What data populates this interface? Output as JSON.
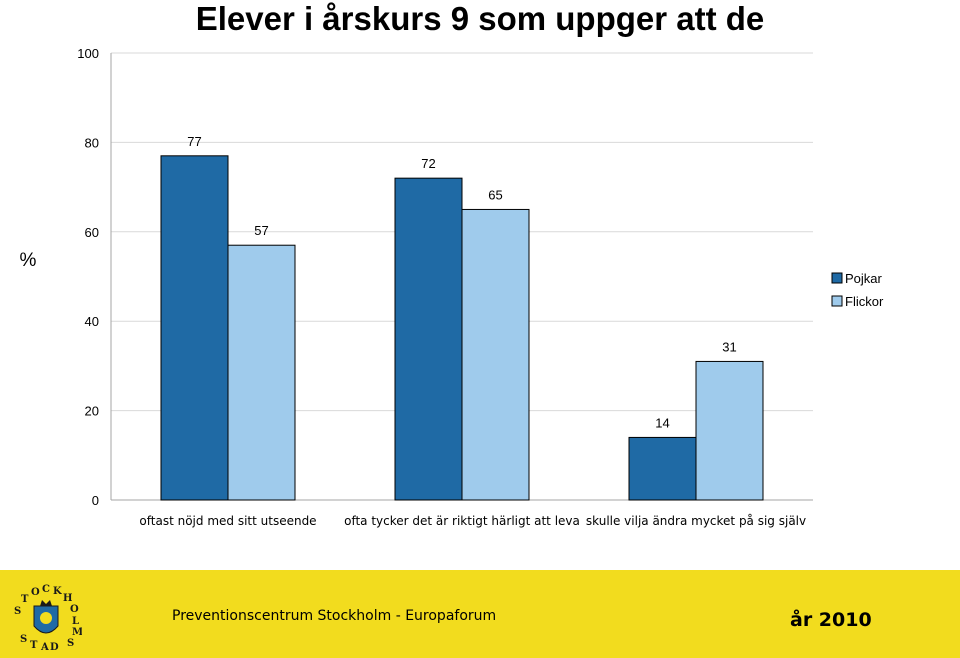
{
  "title": "Elever i årskurs 9 som uppger att de",
  "chart_data": {
    "type": "bar",
    "ylabel": "%",
    "ylim": [
      0,
      100
    ],
    "yticks": [
      0,
      20,
      40,
      60,
      80,
      100
    ],
    "categories": [
      "oftast nöjd med sitt utseende",
      "ofta tycker det är riktigt härligt att leva",
      "skulle vilja ändra mycket på sig själv"
    ],
    "series": [
      {
        "name": "Pojkar",
        "color": "#1f6aa5",
        "values": [
          77,
          72,
          14
        ]
      },
      {
        "name": "Flickor",
        "color": "#9fcbec",
        "values": [
          57,
          65,
          31
        ]
      }
    ],
    "grid": true,
    "legend": "right"
  },
  "footer": {
    "organization": "Preventionscentrum Stockholm - Europaforum",
    "year": "år 2010",
    "logo_text": "STOCKHOLMS STAD"
  }
}
